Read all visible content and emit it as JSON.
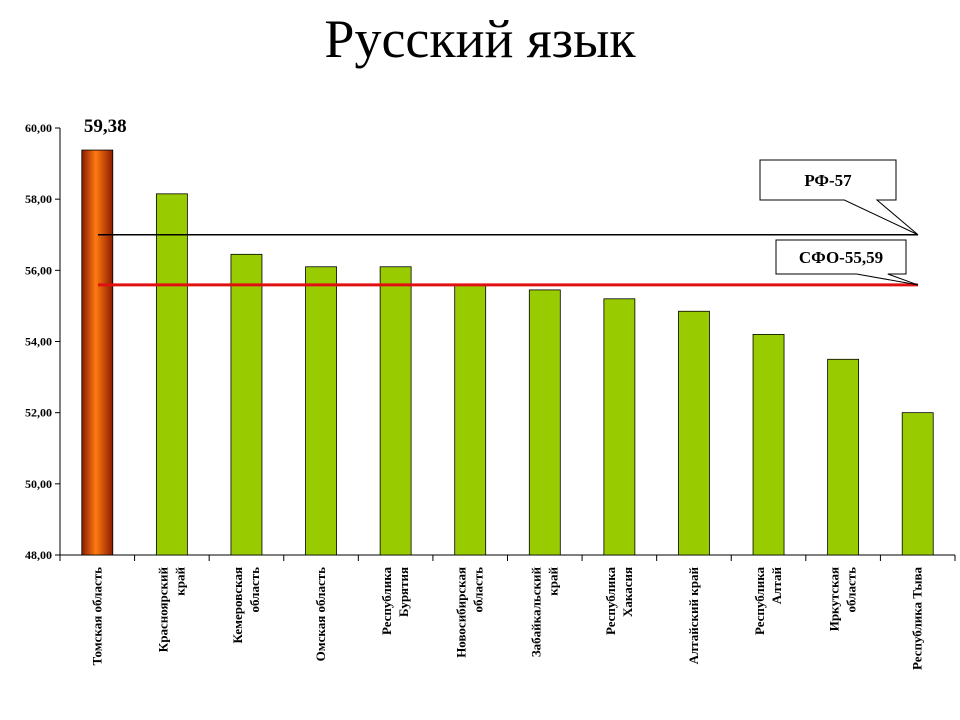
{
  "title": "Русский язык",
  "chart_data": {
    "type": "bar",
    "title": "Русский язык",
    "xlabel": "",
    "ylabel": "",
    "ylim": [
      48,
      60
    ],
    "yticks": [
      "48,00",
      "50,00",
      "52,00",
      "54,00",
      "56,00",
      "58,00",
      "60,00"
    ],
    "categories": [
      [
        "Томская область"
      ],
      [
        "Красноярский",
        "край"
      ],
      [
        "Кемеровская",
        "область"
      ],
      [
        "Омская область"
      ],
      [
        "Республика",
        "Бурятия"
      ],
      [
        "Новосибирская",
        "область"
      ],
      [
        "Забайкальский",
        "край"
      ],
      [
        "Республика",
        "Хакасия"
      ],
      [
        "Алтайский край"
      ],
      [
        "Республика",
        "Алтай"
      ],
      [
        "Иркутская",
        "область"
      ],
      [
        "Республика Тыва"
      ]
    ],
    "values": [
      59.38,
      58.15,
      56.45,
      56.1,
      56.1,
      55.6,
      55.45,
      55.2,
      54.85,
      54.2,
      53.5,
      52.0
    ],
    "highlight_index": 0,
    "data_labels": [
      {
        "index": 0,
        "text": "59,38"
      }
    ],
    "reference_lines": [
      {
        "value": 57,
        "label": "РФ-57",
        "color": "#000000"
      },
      {
        "value": 55.59,
        "label": "СФО-55,59",
        "color": "#e01010"
      }
    ],
    "colors": {
      "bar": "#99cc00",
      "bar_highlight": "#e85a00",
      "axis": "#000000",
      "grid": "none"
    },
    "grid": false,
    "legend": "none"
  }
}
